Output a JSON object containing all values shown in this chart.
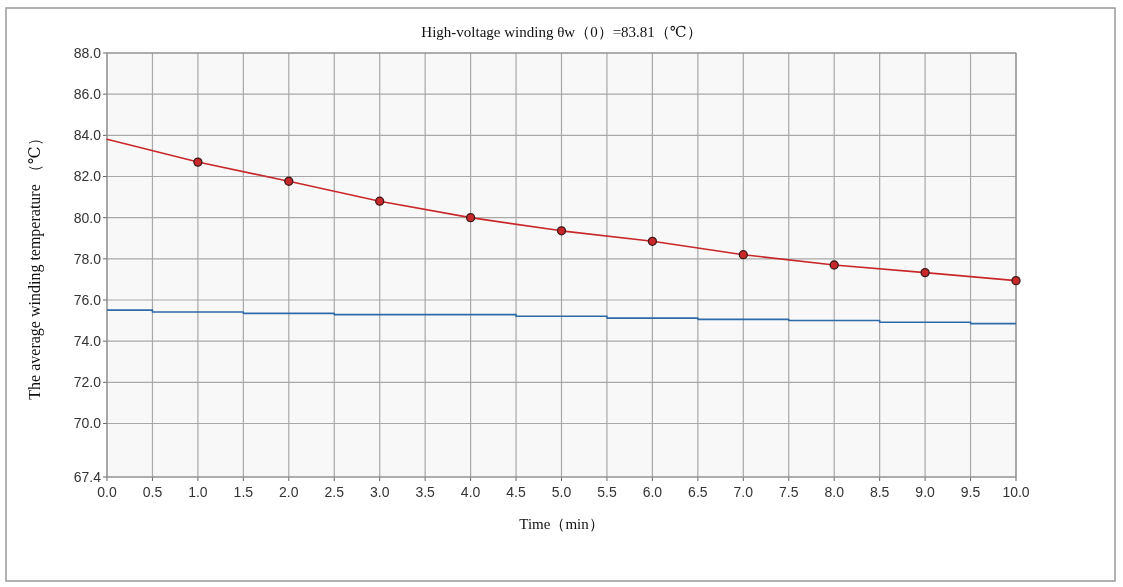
{
  "chart_data": {
    "type": "line",
    "title": "High-voltage winding θw（0）=83.81（℃）",
    "xlabel": "Time（min）",
    "ylabel": "The average winding temperature （℃）",
    "xlim": [
      0,
      10
    ],
    "xticks": [
      {
        "value": 0,
        "label": "0.0"
      },
      {
        "value": 0.5,
        "label": "0.5"
      },
      {
        "value": 1,
        "label": "1.0"
      },
      {
        "value": 1.5,
        "label": "1.5"
      },
      {
        "value": 2,
        "label": "2.0"
      },
      {
        "value": 2.5,
        "label": "2.5"
      },
      {
        "value": 3,
        "label": "3.0"
      },
      {
        "value": 3.5,
        "label": "3.5"
      },
      {
        "value": 4,
        "label": "4.0"
      },
      {
        "value": 4.5,
        "label": "4.5"
      },
      {
        "value": 5,
        "label": "5.0"
      },
      {
        "value": 5.5,
        "label": "5.5"
      },
      {
        "value": 6,
        "label": "6.0"
      },
      {
        "value": 6.5,
        "label": "6.5"
      },
      {
        "value": 7,
        "label": "7.0"
      },
      {
        "value": 7.5,
        "label": "7.5"
      },
      {
        "value": 8,
        "label": "8.0"
      },
      {
        "value": 8.5,
        "label": "8.5"
      },
      {
        "value": 9,
        "label": "9.0"
      },
      {
        "value": 9.5,
        "label": "9.5"
      },
      {
        "value": 10,
        "label": "10.0"
      }
    ],
    "ylim": [
      67.4,
      88
    ],
    "yticks": [
      {
        "value": 67.4,
        "label": "67.4"
      },
      {
        "value": 70,
        "label": "70.0"
      },
      {
        "value": 72,
        "label": "72.0"
      },
      {
        "value": 74,
        "label": "74.0"
      },
      {
        "value": 76,
        "label": "76.0"
      },
      {
        "value": 78,
        "label": "78.0"
      },
      {
        "value": 80,
        "label": "80.0"
      },
      {
        "value": 82,
        "label": "82.0"
      },
      {
        "value": 84,
        "label": "84.0"
      },
      {
        "value": 86,
        "label": "86.0"
      },
      {
        "value": 88,
        "label": "88.0"
      }
    ],
    "grid": true,
    "series": [
      {
        "type": "line",
        "color": "#c8282a",
        "x": [
          0,
          1,
          2,
          3,
          4,
          5,
          6,
          7,
          8,
          9,
          10
        ],
        "values": [
          83.81,
          82.7,
          81.77,
          80.8,
          80.0,
          79.36,
          78.85,
          78.2,
          77.7,
          77.33,
          76.94
        ]
      },
      {
        "type": "scatter",
        "marker": "circle",
        "color": "#c8282a",
        "x": [
          1,
          2,
          3,
          4,
          5,
          6,
          7,
          8,
          9,
          10
        ],
        "values": [
          82.7,
          81.77,
          80.8,
          80.0,
          79.36,
          78.85,
          78.2,
          77.7,
          77.33,
          76.94
        ]
      },
      {
        "type": "step",
        "color": "#2e6aa8",
        "x": [
          0,
          1,
          2,
          3,
          4,
          5,
          6,
          7,
          8,
          9,
          10
        ],
        "values": [
          75.51,
          75.42,
          75.35,
          75.29,
          75.29,
          75.21,
          75.12,
          75.06,
          75.0,
          74.92,
          74.85
        ]
      }
    ]
  }
}
